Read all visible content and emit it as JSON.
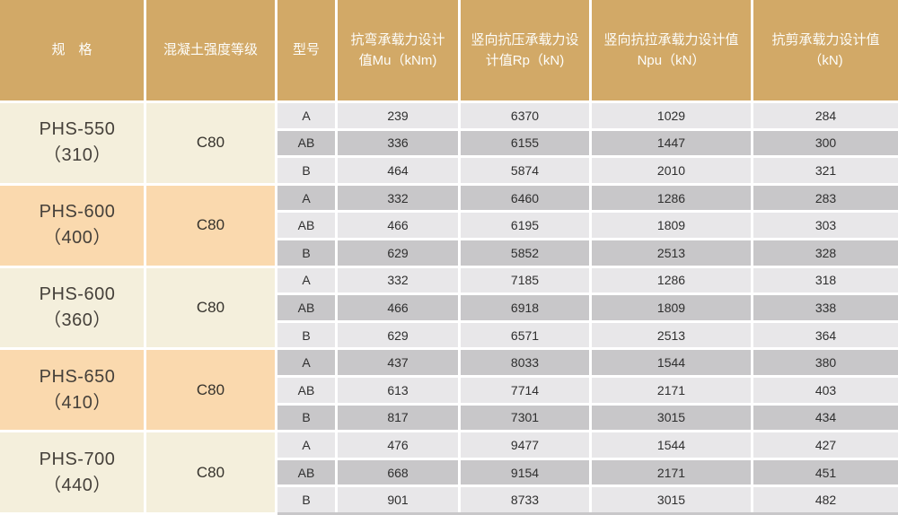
{
  "colors": {
    "header_bg": "#d2a967",
    "header_text": "#fdfdfa",
    "group_cream": "#f4efdc",
    "group_peach": "#fad9ae",
    "row_light": "#e8e7e9",
    "row_dark": "#c8c7c9"
  },
  "table": {
    "columns": [
      {
        "label": "规　格"
      },
      {
        "label": "混凝土强度等级"
      },
      {
        "label": "型号"
      },
      {
        "label": "抗弯承载力设计值Mu（kNm)"
      },
      {
        "label": "竖向抗压承载力设计值Rp（kN)"
      },
      {
        "label": "竖向抗拉承载力设计值Npu（kN）"
      },
      {
        "label": "抗剪承载力设计值（kN)"
      }
    ],
    "groups": [
      {
        "spec": "PHS-550（310）",
        "grade": "C80",
        "rows": [
          {
            "type": "A",
            "mu": "239",
            "rp": "6370",
            "npu": "1029",
            "shear": "284"
          },
          {
            "type": "AB",
            "mu": "336",
            "rp": "6155",
            "npu": "1447",
            "shear": "300"
          },
          {
            "type": "B",
            "mu": "464",
            "rp": "5874",
            "npu": "2010",
            "shear": "321"
          }
        ]
      },
      {
        "spec": "PHS-600（400）",
        "grade": "C80",
        "rows": [
          {
            "type": "A",
            "mu": "332",
            "rp": "6460",
            "npu": "1286",
            "shear": "283"
          },
          {
            "type": "AB",
            "mu": "466",
            "rp": "6195",
            "npu": "1809",
            "shear": "303"
          },
          {
            "type": "B",
            "mu": "629",
            "rp": "5852",
            "npu": "2513",
            "shear": "328"
          }
        ]
      },
      {
        "spec": "PHS-600（360）",
        "grade": "C80",
        "rows": [
          {
            "type": "A",
            "mu": "332",
            "rp": "7185",
            "npu": "1286",
            "shear": "318"
          },
          {
            "type": "AB",
            "mu": "466",
            "rp": "6918",
            "npu": "1809",
            "shear": "338"
          },
          {
            "type": "B",
            "mu": "629",
            "rp": "6571",
            "npu": "2513",
            "shear": "364"
          }
        ]
      },
      {
        "spec": "PHS-650（410）",
        "grade": "C80",
        "rows": [
          {
            "type": "A",
            "mu": "437",
            "rp": "8033",
            "npu": "1544",
            "shear": "380"
          },
          {
            "type": "AB",
            "mu": "613",
            "rp": "7714",
            "npu": "2171",
            "shear": "403"
          },
          {
            "type": "B",
            "mu": "817",
            "rp": "7301",
            "npu": "3015",
            "shear": "434"
          }
        ]
      },
      {
        "spec": "PHS-700（440）",
        "grade": "C80",
        "rows": [
          {
            "type": "A",
            "mu": "476",
            "rp": "9477",
            "npu": "1544",
            "shear": "427"
          },
          {
            "type": "AB",
            "mu": "668",
            "rp": "9154",
            "npu": "2171",
            "shear": "451"
          },
          {
            "type": "B",
            "mu": "901",
            "rp": "8733",
            "npu": "3015",
            "shear": "482"
          }
        ]
      }
    ]
  }
}
